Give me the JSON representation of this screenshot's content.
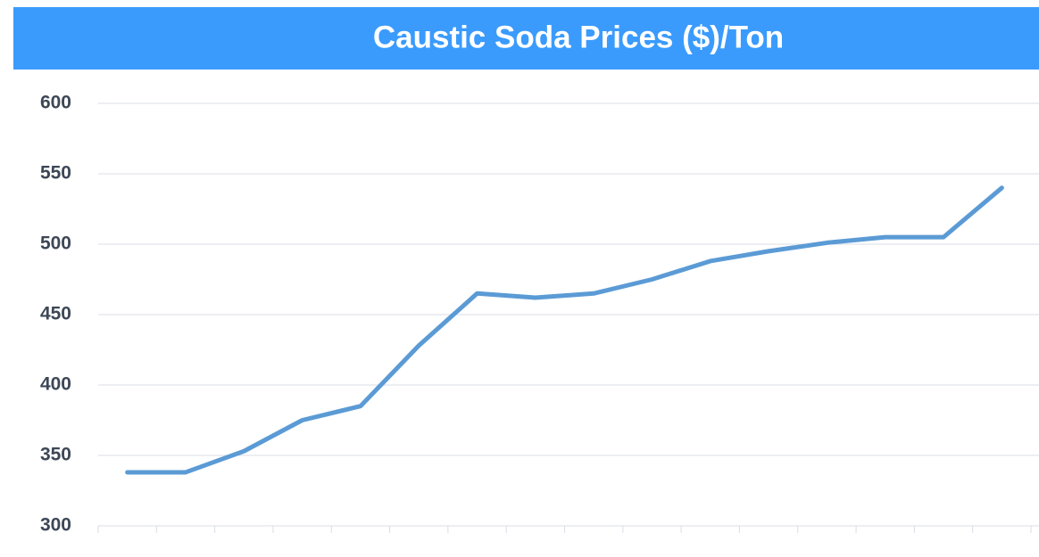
{
  "chart_data": {
    "type": "line",
    "title": "Caustic Soda Prices ($)/Ton",
    "categories": [
      null,
      null,
      null,
      null,
      null,
      null,
      null,
      null,
      null,
      null,
      null,
      null,
      null,
      null,
      null,
      null
    ],
    "series": [
      {
        "name": null,
        "color": "#5b9bd5",
        "values": [
          338,
          338,
          353,
          375,
          385,
          428,
          465,
          462,
          465,
          475,
          488,
          495,
          501,
          505,
          505,
          540
        ]
      }
    ],
    "ylim": [
      300,
      600
    ],
    "yticks": [
      300,
      350,
      400,
      450,
      500,
      550,
      600
    ],
    "grid": true
  }
}
